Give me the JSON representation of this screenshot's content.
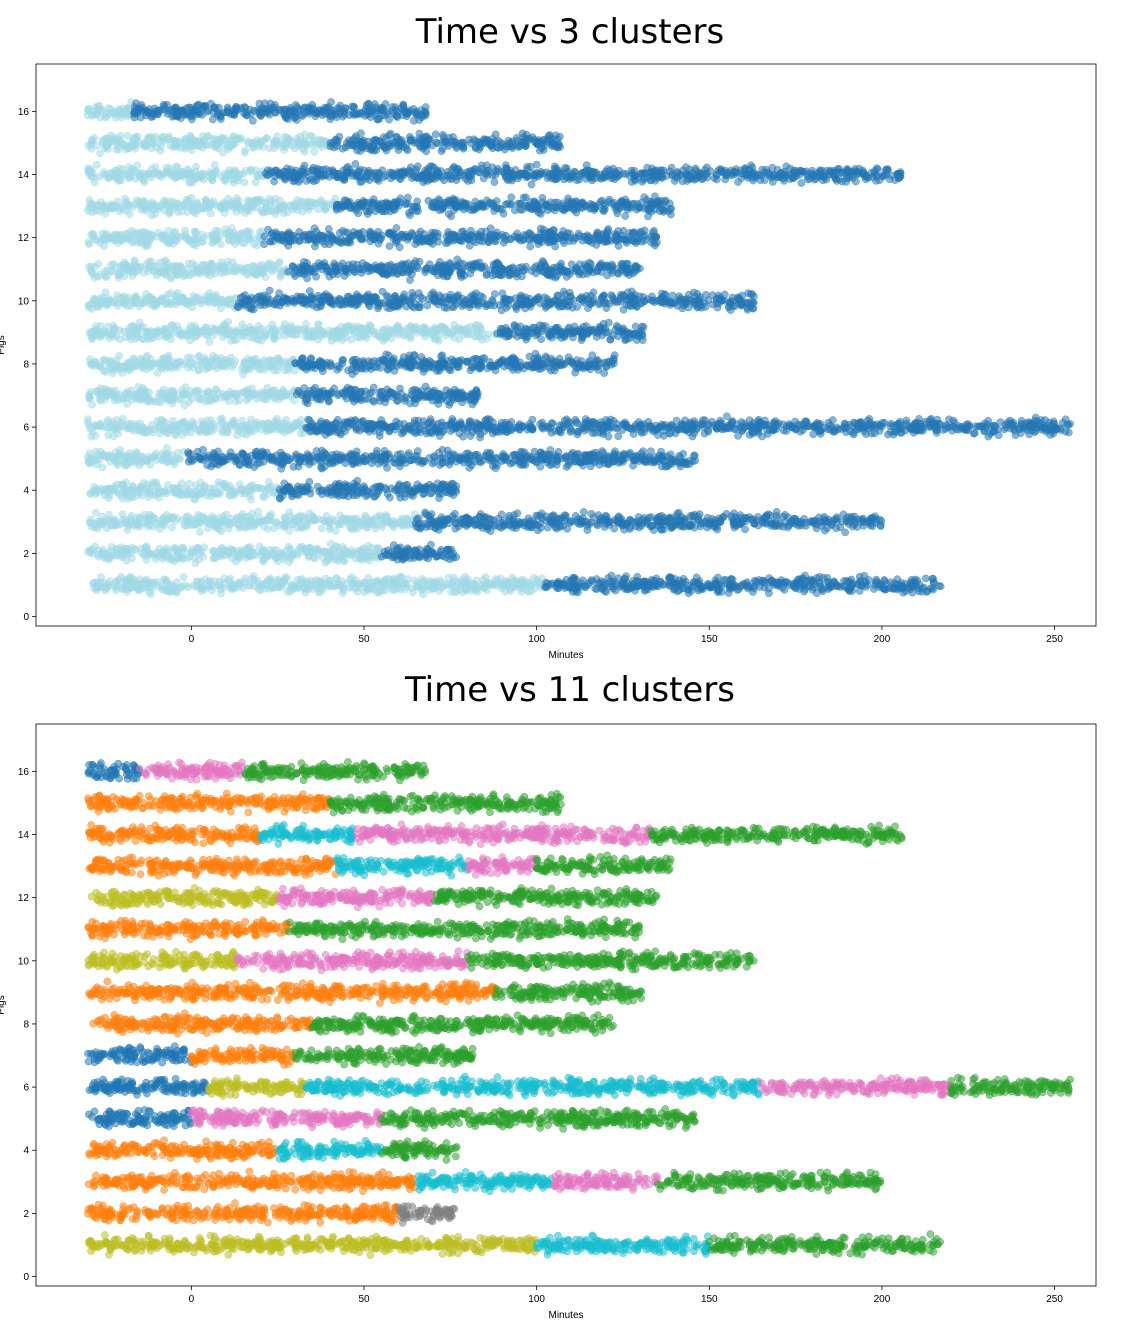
{
  "chart_data": [
    {
      "type": "scatter",
      "title": "Time vs 3 clusters",
      "xlabel": "Minutes",
      "ylabel": "Pigs",
      "xlim": [
        -45,
        262
      ],
      "ylim": [
        -0.3,
        17.5
      ],
      "xticks": [
        0,
        50,
        100,
        150,
        200,
        250
      ],
      "yticks": [
        0,
        2,
        4,
        6,
        8,
        10,
        12,
        14,
        16
      ],
      "grid": false,
      "cluster_colors": [
        "#a0d9e6",
        "#2477b4",
        "#c58282"
      ],
      "rows": [
        {
          "y": 1,
          "segments": [
            [
              -30,
              102,
              0
            ],
            [
              102,
              217,
              1
            ]
          ]
        },
        {
          "y": 2,
          "segments": [
            [
              -30,
              55,
              0
            ],
            [
              55,
              77,
              1
            ]
          ]
        },
        {
          "y": 3,
          "segments": [
            [
              -30,
              65,
              0
            ],
            [
              65,
              200,
              1
            ]
          ]
        },
        {
          "y": 4,
          "segments": [
            [
              -30,
              25,
              0
            ],
            [
              25,
              77,
              1
            ]
          ]
        },
        {
          "y": 5,
          "segments": [
            [
              -30,
              -2,
              0
            ],
            [
              -2,
              146,
              1
            ]
          ]
        },
        {
          "y": 6,
          "segments": [
            [
              -30,
              33,
              0
            ],
            [
              33,
              255,
              1
            ]
          ]
        },
        {
          "y": 7,
          "segments": [
            [
              -30,
              30,
              0
            ],
            [
              30,
              83,
              1
            ]
          ]
        },
        {
          "y": 8,
          "segments": [
            [
              -30,
              30,
              0
            ],
            [
              30,
              123,
              1
            ]
          ]
        },
        {
          "y": 9,
          "segments": [
            [
              -30,
              88,
              0
            ],
            [
              88,
              131,
              1
            ]
          ]
        },
        {
          "y": 10,
          "segments": [
            [
              -30,
              13,
              0
            ],
            [
              13,
              163,
              1
            ]
          ]
        },
        {
          "y": 11,
          "segments": [
            [
              -30,
              28,
              0
            ],
            [
              28,
              130,
              1
            ]
          ]
        },
        {
          "y": 12,
          "segments": [
            [
              -30,
              21,
              0
            ],
            [
              21,
              135,
              1
            ]
          ]
        },
        {
          "y": 13,
          "segments": [
            [
              -30,
              42,
              0
            ],
            [
              42,
              139,
              1
            ]
          ]
        },
        {
          "y": 14,
          "segments": [
            [
              -30,
              21,
              0
            ],
            [
              21,
              206,
              1
            ]
          ]
        },
        {
          "y": 15,
          "segments": [
            [
              -30,
              40,
              0
            ],
            [
              40,
              107,
              1
            ]
          ]
        },
        {
          "y": 16,
          "segments": [
            [
              -30,
              -17,
              0
            ],
            [
              -17,
              68,
              1
            ]
          ]
        }
      ]
    },
    {
      "type": "scatter",
      "title": "Time vs 11 clusters",
      "xlabel": "Minutes",
      "ylabel": "Pigs",
      "xlim": [
        -45,
        262
      ],
      "ylim": [
        -0.3,
        17.5
      ],
      "xticks": [
        0,
        50,
        100,
        150,
        200,
        250
      ],
      "yticks": [
        0,
        2,
        4,
        6,
        8,
        10,
        12,
        14,
        16
      ],
      "grid": false,
      "cluster_colors": [
        "#ff7f0e",
        "#2ca02c",
        "#1f77b4",
        "#e377c2",
        "#17becf",
        "#bcbd22",
        "#7f7f7f",
        "#9edae5",
        "#8c564b",
        "#d62728",
        "#aec7e8"
      ],
      "rows": [
        {
          "y": 1,
          "segments": [
            [
              -30,
              100,
              5
            ],
            [
              100,
              150,
              4
            ],
            [
              150,
              217,
              1
            ]
          ]
        },
        {
          "y": 2,
          "segments": [
            [
              -30,
              60,
              0
            ],
            [
              60,
              77,
              6
            ]
          ]
        },
        {
          "y": 3,
          "segments": [
            [
              -30,
              65,
              0
            ],
            [
              65,
              105,
              4
            ],
            [
              105,
              135,
              3
            ],
            [
              135,
              200,
              1
            ]
          ]
        },
        {
          "y": 4,
          "segments": [
            [
              -30,
              25,
              0
            ],
            [
              25,
              55,
              4
            ],
            [
              55,
              77,
              1
            ]
          ]
        },
        {
          "y": 5,
          "segments": [
            [
              -30,
              0,
              2
            ],
            [
              0,
              55,
              3
            ],
            [
              55,
              146,
              1
            ]
          ]
        },
        {
          "y": 6,
          "segments": [
            [
              -30,
              5,
              2
            ],
            [
              5,
              33,
              5
            ],
            [
              33,
              165,
              4
            ],
            [
              165,
              220,
              3
            ],
            [
              220,
              255,
              1
            ]
          ]
        },
        {
          "y": 7,
          "segments": [
            [
              -30,
              0,
              2
            ],
            [
              0,
              30,
              0
            ],
            [
              30,
              83,
              1
            ]
          ]
        },
        {
          "y": 8,
          "segments": [
            [
              -30,
              35,
              0
            ],
            [
              35,
              123,
              1
            ]
          ]
        },
        {
          "y": 9,
          "segments": [
            [
              -30,
              88,
              0
            ],
            [
              88,
              131,
              1
            ]
          ]
        },
        {
          "y": 10,
          "segments": [
            [
              -30,
              13,
              5
            ],
            [
              13,
              80,
              3
            ],
            [
              80,
              163,
              1
            ]
          ]
        },
        {
          "y": 11,
          "segments": [
            [
              -30,
              28,
              0
            ],
            [
              28,
              130,
              1
            ]
          ]
        },
        {
          "y": 12,
          "segments": [
            [
              -30,
              25,
              5
            ],
            [
              25,
              70,
              3
            ],
            [
              70,
              135,
              1
            ]
          ]
        },
        {
          "y": 13,
          "segments": [
            [
              -30,
              42,
              0
            ],
            [
              42,
              80,
              4
            ],
            [
              80,
              100,
              3
            ],
            [
              100,
              139,
              1
            ]
          ]
        },
        {
          "y": 14,
          "segments": [
            [
              -30,
              20,
              0
            ],
            [
              20,
              47,
              4
            ],
            [
              47,
              133,
              3
            ],
            [
              133,
              206,
              1
            ]
          ]
        },
        {
          "y": 15,
          "segments": [
            [
              -30,
              40,
              0
            ],
            [
              40,
              107,
              1
            ]
          ]
        },
        {
          "y": 16,
          "segments": [
            [
              -30,
              -15,
              2
            ],
            [
              -15,
              15,
              3
            ],
            [
              15,
              68,
              1
            ]
          ]
        }
      ]
    }
  ]
}
